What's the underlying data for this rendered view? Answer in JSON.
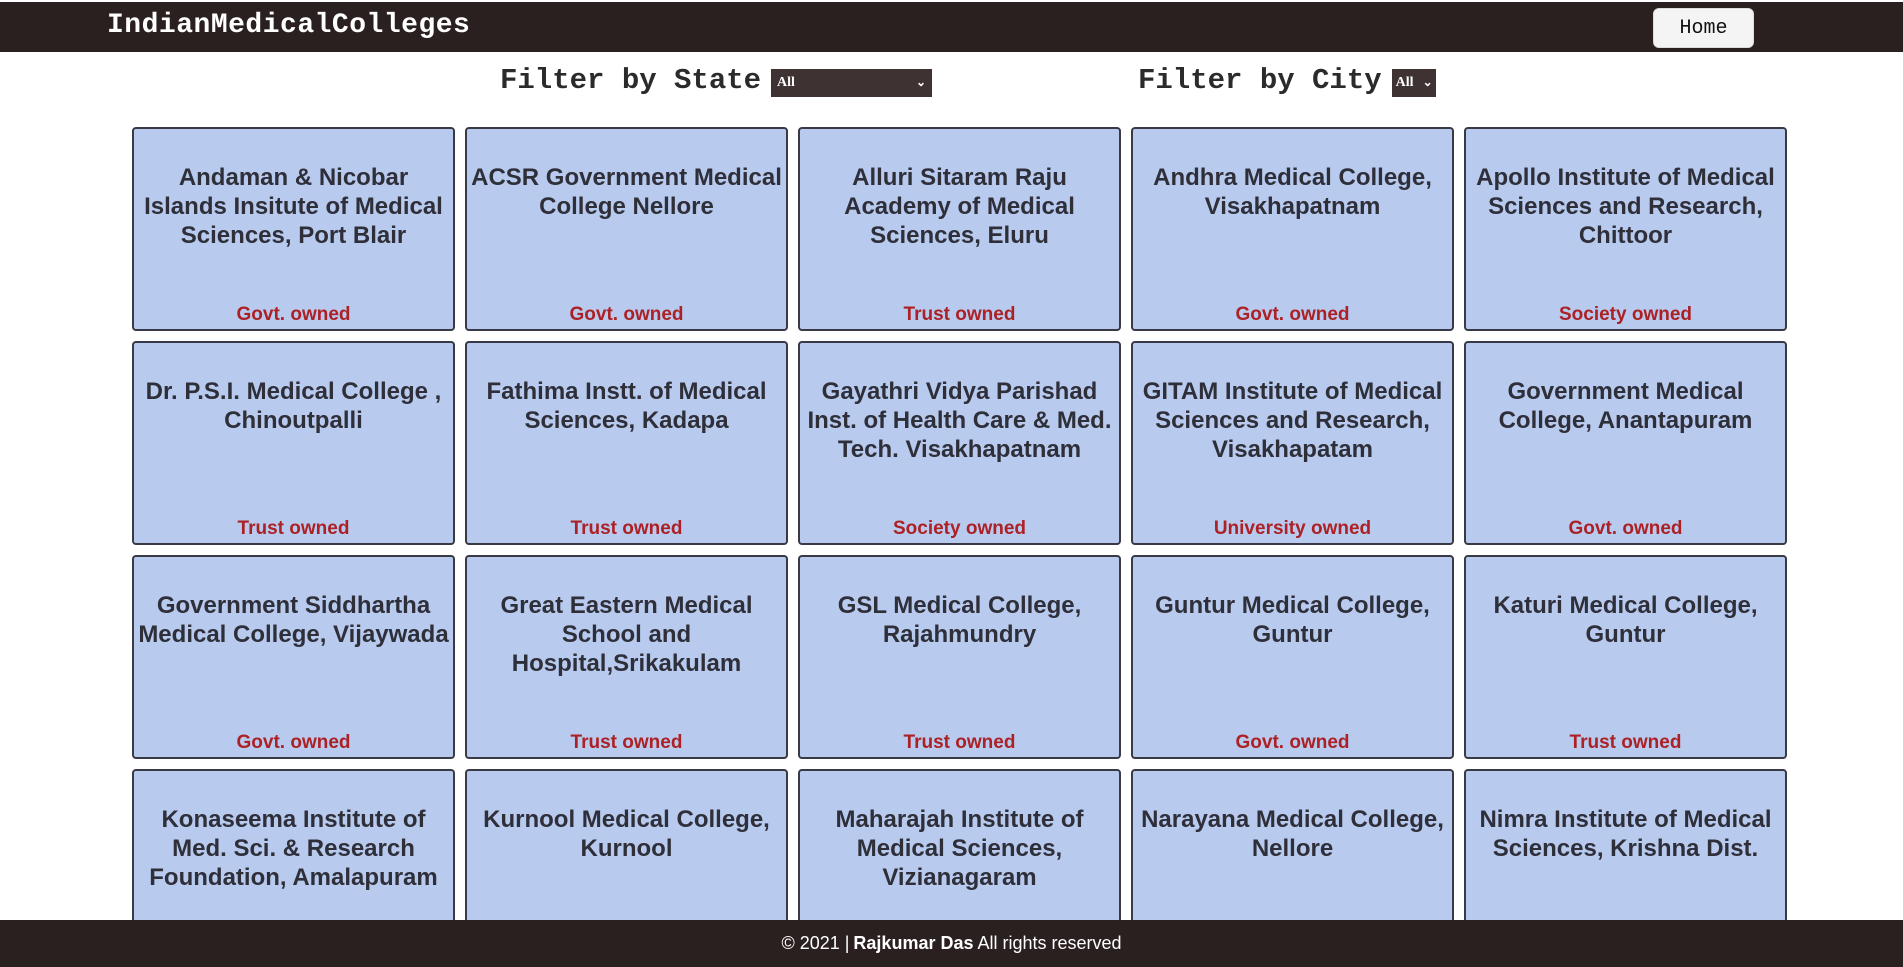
{
  "navbar": {
    "brand": "IndianMedicalColleges",
    "home_label": "Home"
  },
  "filters": {
    "state_label": "Filter by State",
    "state_selected": "All",
    "city_label": "Filter by City",
    "city_selected": "All"
  },
  "colleges": [
    {
      "name": "Andaman & Nicobar Islands Insitute of Medical Sciences, Port Blair",
      "owner": "Govt. owned"
    },
    {
      "name": "ACSR Government Medical College Nellore",
      "owner": "Govt. owned"
    },
    {
      "name": "Alluri Sitaram Raju Academy of Medical Sciences, Eluru",
      "owner": "Trust owned"
    },
    {
      "name": "Andhra Medical College, Visakhapatnam",
      "owner": "Govt. owned"
    },
    {
      "name": "Apollo Institute of Medical Sciences and Research, Chittoor",
      "owner": "Society owned"
    },
    {
      "name": "Dr. P.S.I. Medical College , Chinoutpalli",
      "owner": "Trust owned"
    },
    {
      "name": "Fathima Instt. of Medical Sciences, Kadapa",
      "owner": "Trust owned"
    },
    {
      "name": "Gayathri Vidya Parishad Inst. of Health Care & Med. Tech. Visakhapatnam",
      "owner": "Society owned"
    },
    {
      "name": "GITAM Institute of Medical Sciences and Research, Visakhapatam",
      "owner": "University owned"
    },
    {
      "name": "Government Medical College, Anantapuram",
      "owner": "Govt. owned"
    },
    {
      "name": "Government Siddhartha Medical College, Vijaywada",
      "owner": "Govt. owned"
    },
    {
      "name": "Great Eastern Medical School and Hospital,Srikakulam",
      "owner": "Trust owned"
    },
    {
      "name": "GSL Medical College, Rajahmundry",
      "owner": "Trust owned"
    },
    {
      "name": "Guntur Medical College, Guntur",
      "owner": "Govt. owned"
    },
    {
      "name": "Katuri Medical College, Guntur",
      "owner": "Trust owned"
    },
    {
      "name": "Konaseema Institute of Med. Sci. & Research Foundation, Amalapuram",
      "owner": ""
    },
    {
      "name": "Kurnool Medical College, Kurnool",
      "owner": ""
    },
    {
      "name": "Maharajah Institute of Medical Sciences, Vizianagaram",
      "owner": ""
    },
    {
      "name": "Narayana Medical College, Nellore",
      "owner": ""
    },
    {
      "name": "Nimra Institute of Medical Sciences, Krishna Dist.",
      "owner": ""
    }
  ],
  "footer": {
    "copyright": "© 2021 |",
    "author": "Rajkumar Das",
    "rights": "All rights reserved"
  },
  "colors": {
    "navbar_bg": "#2b2020",
    "card_bg": "#b8cbef",
    "owner_text": "#ac2125"
  }
}
